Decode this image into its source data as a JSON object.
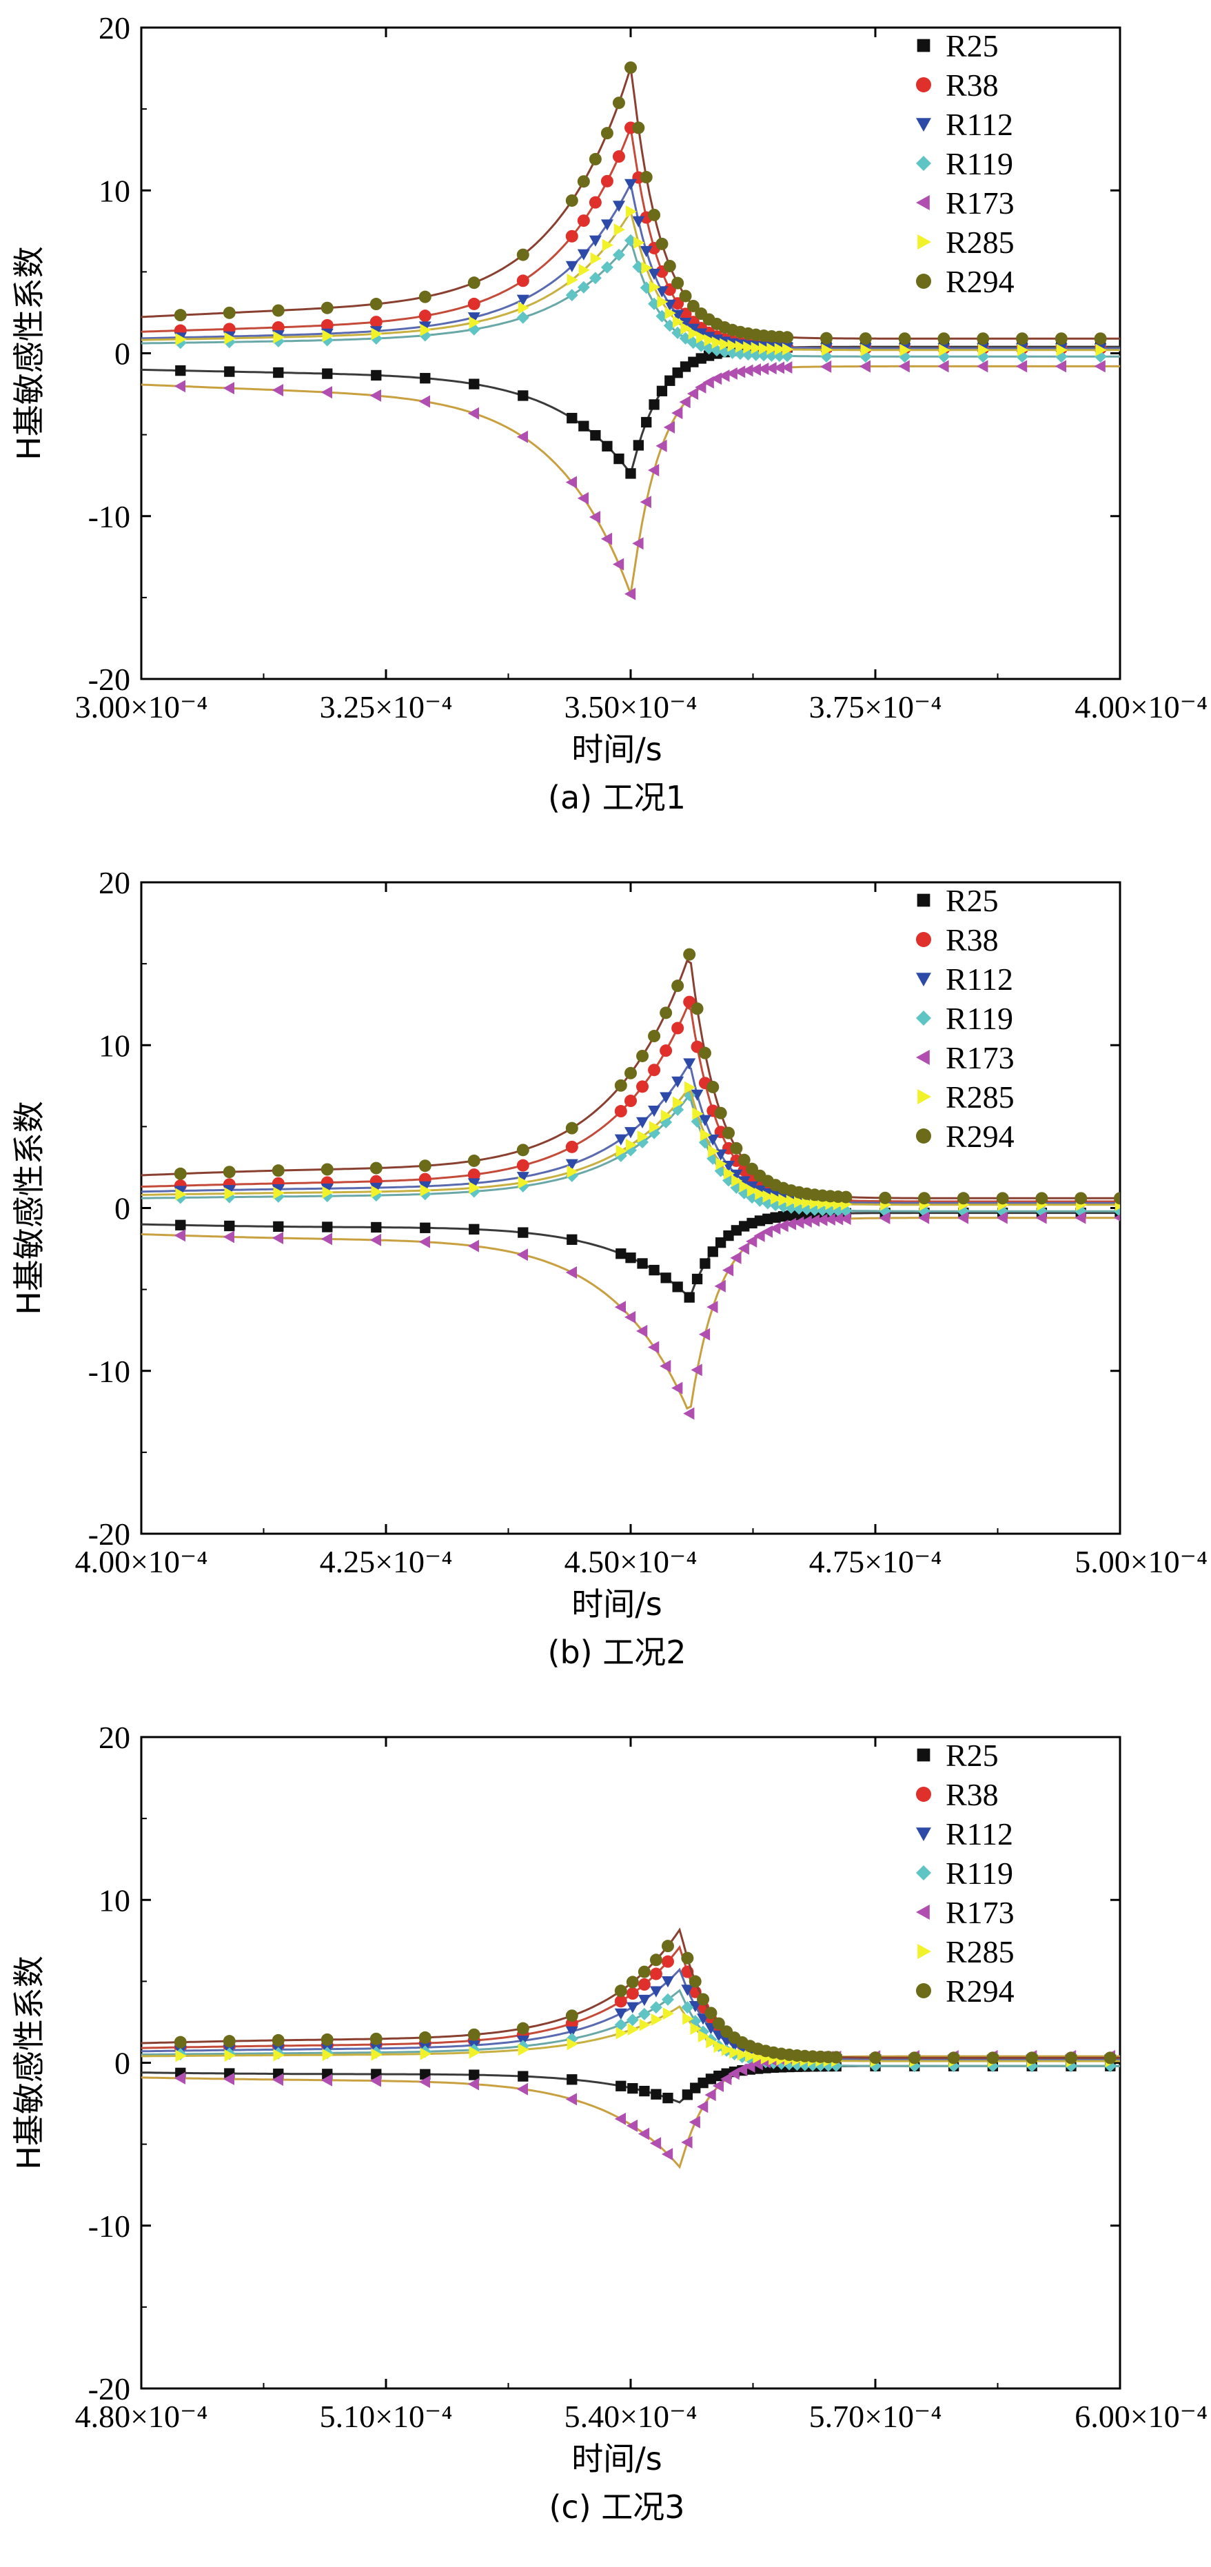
{
  "chart_data": [
    {
      "type": "line",
      "caption": "(a) 工况1",
      "xlabel": "时间/s",
      "ylabel": "H基敏感性系数",
      "xlim": [
        0.0003,
        0.0004
      ],
      "ylim": [
        -20,
        20
      ],
      "xtick_values": [
        0.0003,
        0.000325,
        0.00035,
        0.000375,
        0.0004
      ],
      "xticks": [
        "3.00×10⁻⁴",
        "3.25×10⁻⁴",
        "3.50×10⁻⁴",
        "3.75×10⁻⁴",
        "4.00×10⁻⁴"
      ],
      "yticks": [
        "20",
        "10",
        "0",
        "-10",
        "-20"
      ],
      "ytick_values": [
        20,
        10,
        0,
        -10,
        -20
      ],
      "peak_x": 0.00035,
      "series": [
        {
          "name": "R25",
          "color": "#111111",
          "line_color": "#3a3a3a",
          "marker": "square",
          "peak": -7.5,
          "base": -1.0,
          "tail": 0.4
        },
        {
          "name": "R38",
          "color": "#e0302c",
          "line_color": "#c44a3a",
          "marker": "circle",
          "peak": 14.0,
          "base": 1.3,
          "tail": 0.3
        },
        {
          "name": "R112",
          "color": "#2e4aa8",
          "line_color": "#5a6ab0",
          "marker": "triangle-down",
          "peak": 10.5,
          "base": 0.9,
          "tail": 0.3
        },
        {
          "name": "R119",
          "color": "#5fc4c4",
          "line_color": "#6aa8a8",
          "marker": "diamond",
          "peak": 7.0,
          "base": 0.6,
          "tail": -0.2
        },
        {
          "name": "R173",
          "color": "#b04fb0",
          "line_color": "#c8a040",
          "marker": "triangle-left",
          "peak": -15.0,
          "base": -1.9,
          "tail": -0.8
        },
        {
          "name": "R285",
          "color": "#f2f22a",
          "line_color": "#c8b040",
          "marker": "triangle-right",
          "peak": 8.8,
          "base": 0.8,
          "tail": 0.2
        },
        {
          "name": "R294",
          "color": "#6b6b1a",
          "line_color": "#8a4030",
          "marker": "circle",
          "peak": 17.8,
          "base": 2.2,
          "tail": 0.9
        }
      ]
    },
    {
      "type": "line",
      "caption": "(b) 工况2",
      "xlabel": "时间/s",
      "ylabel": "H基敏感性系数",
      "xlim": [
        0.0004,
        0.0005
      ],
      "ylim": [
        -20,
        20
      ],
      "xtick_values": [
        0.0004,
        0.000425,
        0.00045,
        0.000475,
        0.0005
      ],
      "xticks": [
        "4.00×10⁻⁴",
        "4.25×10⁻⁴",
        "4.50×10⁻⁴",
        "4.75×10⁻⁴",
        "5.00×10⁻⁴"
      ],
      "yticks": [
        "20",
        "10",
        "0",
        "-10",
        "-20"
      ],
      "ytick_values": [
        20,
        10,
        0,
        -10,
        -20
      ],
      "peak_x": 0.000456,
      "series": [
        {
          "name": "R25",
          "color": "#111111",
          "line_color": "#3a3a3a",
          "marker": "square",
          "peak": -5.6,
          "base": -1.0,
          "tail": -0.3
        },
        {
          "name": "R38",
          "color": "#e0302c",
          "line_color": "#c44a3a",
          "marker": "circle",
          "peak": 12.8,
          "base": 1.3,
          "tail": 0.4
        },
        {
          "name": "R112",
          "color": "#2e4aa8",
          "line_color": "#5a6ab0",
          "marker": "triangle-down",
          "peak": 9.0,
          "base": 1.0,
          "tail": 0.3
        },
        {
          "name": "R119",
          "color": "#5fc4c4",
          "line_color": "#6aa8a8",
          "marker": "diamond",
          "peak": 7.0,
          "base": 0.6,
          "tail": -0.2
        },
        {
          "name": "R173",
          "color": "#b04fb0",
          "line_color": "#c8a040",
          "marker": "triangle-left",
          "peak": -12.8,
          "base": -1.6,
          "tail": -0.6
        },
        {
          "name": "R285",
          "color": "#f2f22a",
          "line_color": "#c8b040",
          "marker": "triangle-right",
          "peak": 7.5,
          "base": 0.8,
          "tail": 0.2
        },
        {
          "name": "R294",
          "color": "#6b6b1a",
          "line_color": "#8a4030",
          "marker": "circle",
          "peak": 15.8,
          "base": 2.0,
          "tail": 0.6
        }
      ]
    },
    {
      "type": "line",
      "caption": "(c) 工况3",
      "xlabel": "时间/s",
      "ylabel": "H基敏感性系数",
      "xlim": [
        0.00048,
        0.0006
      ],
      "ylim": [
        -20,
        20
      ],
      "xtick_values": [
        0.00048,
        0.00051,
        0.00054,
        0.00057,
        0.0006
      ],
      "xticks": [
        "4.80×10⁻⁴",
        "5.10×10⁻⁴",
        "5.40×10⁻⁴",
        "5.70×10⁻⁴",
        "6.00×10⁻⁴"
      ],
      "yticks": [
        "20",
        "10",
        "0",
        "-10",
        "-20"
      ],
      "ytick_values": [
        20,
        10,
        0,
        -10,
        -20
      ],
      "peak_x": 0.000546,
      "series": [
        {
          "name": "R25",
          "color": "#111111",
          "line_color": "#3a3a3a",
          "marker": "square",
          "peak": -2.5,
          "base": -0.6,
          "tail": -0.2
        },
        {
          "name": "R38",
          "color": "#e0302c",
          "line_color": "#c44a3a",
          "marker": "circle",
          "peak": 7.2,
          "base": 0.9,
          "tail": 0.3
        },
        {
          "name": "R112",
          "color": "#2e4aa8",
          "line_color": "#5a6ab0",
          "marker": "triangle-down",
          "peak": 5.8,
          "base": 0.7,
          "tail": 0.2
        },
        {
          "name": "R119",
          "color": "#5fc4c4",
          "line_color": "#6aa8a8",
          "marker": "diamond",
          "peak": 4.5,
          "base": 0.5,
          "tail": -0.2
        },
        {
          "name": "R173",
          "color": "#b04fb0",
          "line_color": "#c8a040",
          "marker": "triangle-left",
          "peak": -6.5,
          "base": -0.9,
          "tail": 0.4
        },
        {
          "name": "R285",
          "color": "#f2f22a",
          "line_color": "#c8b040",
          "marker": "triangle-right",
          "peak": 3.5,
          "base": 0.4,
          "tail": 0.1
        },
        {
          "name": "R294",
          "color": "#6b6b1a",
          "line_color": "#8a4030",
          "marker": "circle",
          "peak": 8.3,
          "base": 1.2,
          "tail": 0.3
        }
      ]
    }
  ]
}
